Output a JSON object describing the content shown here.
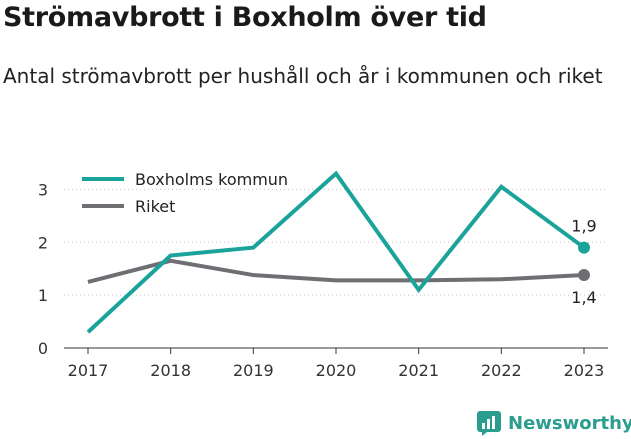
{
  "title": "Strömavbrott i Boxholm över tid",
  "subtitle": "Antal strömavbrott per hushåll och år i kommunen och riket",
  "brand": "Newsworthy",
  "chart_data": {
    "type": "line",
    "x": [
      "2017",
      "2018",
      "2019",
      "2020",
      "2021",
      "2022",
      "2023"
    ],
    "yticks": [
      0,
      1,
      2,
      3
    ],
    "ylim": [
      0,
      3.5
    ],
    "grid": true,
    "legend_position": "top-left",
    "series": [
      {
        "name": "Boxholms kommun",
        "color": "#1aa39a",
        "values": [
          0.3,
          1.75,
          1.9,
          3.3,
          1.1,
          3.05,
          1.9
        ],
        "end_label": "1,9"
      },
      {
        "name": "Riket",
        "color": "#6e6e73",
        "values": [
          1.25,
          1.65,
          1.38,
          1.28,
          1.28,
          1.3,
          1.38
        ],
        "end_label": "1,4"
      }
    ]
  }
}
